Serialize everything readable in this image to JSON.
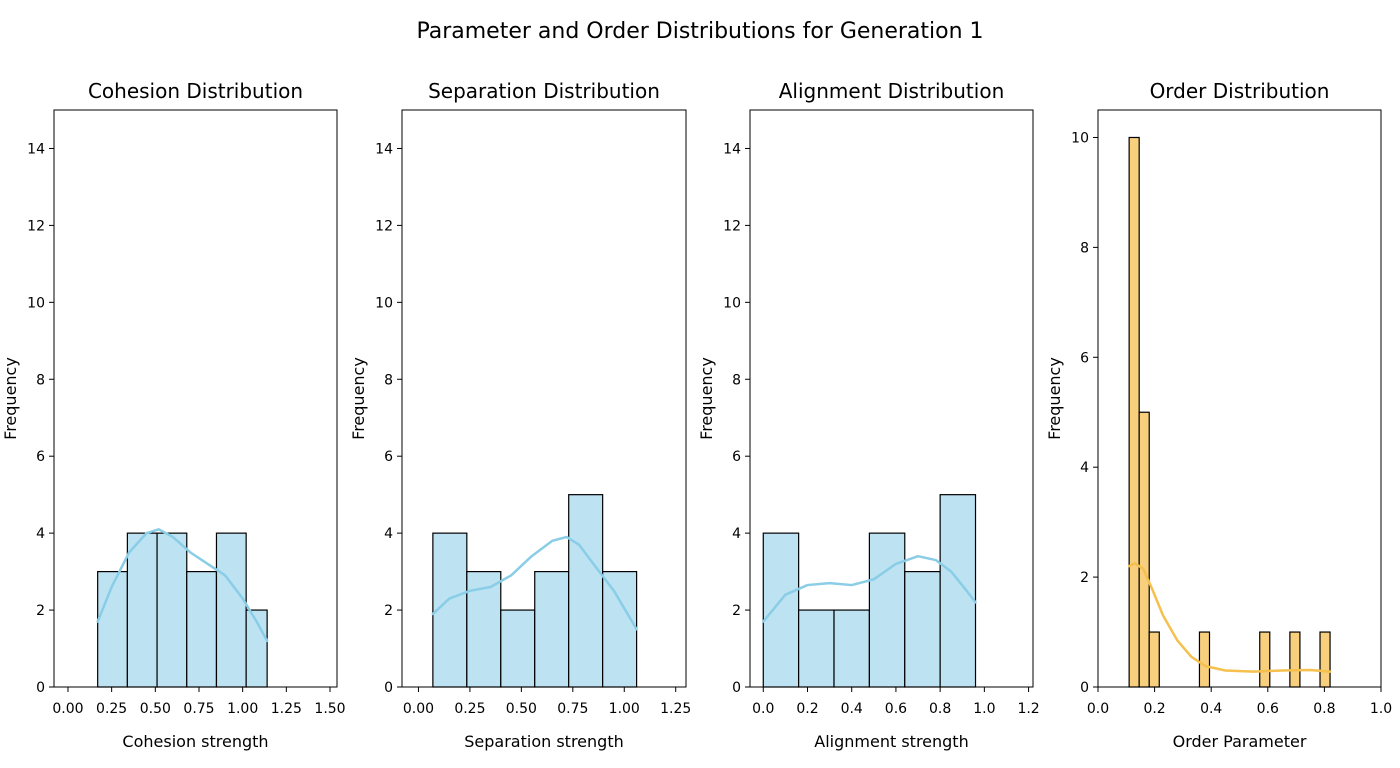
{
  "figure": {
    "title": "Parameter and Order Distributions for Generation 1"
  },
  "colors": {
    "blue_fill": "#bde3f2",
    "blue_kde": "#89cde6",
    "orange_fill": "#f7cf7d",
    "orange_kde": "#f5c04d",
    "edge": "#000000"
  },
  "chart_data": [
    {
      "type": "bar",
      "title": "Cohesion Distribution",
      "xlabel": "Cohesion strength",
      "ylabel": "Frequency",
      "xlim": [
        -0.08,
        1.54
      ],
      "ylim": [
        0,
        15
      ],
      "xticks": [
        0.0,
        0.25,
        0.5,
        0.75,
        1.0,
        1.25,
        1.5
      ],
      "xtick_labels": [
        "0.00",
        "0.25",
        "0.50",
        "0.75",
        "1.00",
        "1.25",
        "1.50"
      ],
      "yticks": [
        0,
        2,
        4,
        6,
        8,
        10,
        12,
        14
      ],
      "ytick_labels": [
        "0",
        "2",
        "4",
        "6",
        "8",
        "10",
        "12",
        "14"
      ],
      "bin_edges": [
        0.17,
        0.34,
        0.51,
        0.68,
        0.85,
        1.02,
        1.14
      ],
      "counts": [
        3,
        4,
        4,
        3,
        4,
        2
      ],
      "kde": {
        "x": [
          0.17,
          0.25,
          0.35,
          0.45,
          0.52,
          0.6,
          0.7,
          0.8,
          0.9,
          1.0,
          1.08,
          1.14
        ],
        "y": [
          1.7,
          2.6,
          3.5,
          4.0,
          4.1,
          3.9,
          3.5,
          3.2,
          2.9,
          2.3,
          1.7,
          1.2
        ]
      },
      "fill": "blue_fill",
      "line": "blue_kde"
    },
    {
      "type": "bar",
      "title": "Separation Distribution",
      "xlabel": "Separation strength",
      "ylabel": "Frequency",
      "xlim": [
        -0.08,
        1.3
      ],
      "ylim": [
        0,
        15
      ],
      "xticks": [
        0.0,
        0.25,
        0.5,
        0.75,
        1.0,
        1.25
      ],
      "xtick_labels": [
        "0.00",
        "0.25",
        "0.50",
        "0.75",
        "1.00",
        "1.25"
      ],
      "yticks": [
        0,
        2,
        4,
        6,
        8,
        10,
        12,
        14
      ],
      "ytick_labels": [
        "0",
        "2",
        "4",
        "6",
        "8",
        "10",
        "12",
        "14"
      ],
      "bin_edges": [
        0.07,
        0.235,
        0.4,
        0.565,
        0.73,
        0.895,
        1.06
      ],
      "counts": [
        4,
        3,
        2,
        3,
        5,
        3
      ],
      "kde": {
        "x": [
          0.07,
          0.15,
          0.25,
          0.35,
          0.45,
          0.55,
          0.65,
          0.72,
          0.78,
          0.85,
          0.95,
          1.06
        ],
        "y": [
          1.9,
          2.3,
          2.5,
          2.6,
          2.9,
          3.4,
          3.8,
          3.9,
          3.7,
          3.2,
          2.5,
          1.5
        ]
      },
      "fill": "blue_fill",
      "line": "blue_kde"
    },
    {
      "type": "bar",
      "title": "Alignment Distribution",
      "xlabel": "Alignment strength",
      "ylabel": "Frequency",
      "xlim": [
        -0.06,
        1.22
      ],
      "ylim": [
        0,
        15
      ],
      "xticks": [
        0.0,
        0.2,
        0.4,
        0.6,
        0.8,
        1.0,
        1.2
      ],
      "xtick_labels": [
        "0.0",
        "0.2",
        "0.4",
        "0.6",
        "0.8",
        "1.0",
        "1.2"
      ],
      "yticks": [
        0,
        2,
        4,
        6,
        8,
        10,
        12,
        14
      ],
      "ytick_labels": [
        "0",
        "2",
        "4",
        "6",
        "8",
        "10",
        "12",
        "14"
      ],
      "bin_edges": [
        0.0,
        0.16,
        0.32,
        0.48,
        0.64,
        0.8,
        0.96
      ],
      "counts": [
        4,
        2,
        2,
        4,
        3,
        5
      ],
      "kde": {
        "x": [
          0.0,
          0.1,
          0.2,
          0.3,
          0.4,
          0.5,
          0.6,
          0.7,
          0.78,
          0.85,
          0.92,
          0.96
        ],
        "y": [
          1.7,
          2.4,
          2.65,
          2.7,
          2.65,
          2.8,
          3.2,
          3.4,
          3.3,
          3.0,
          2.5,
          2.2
        ]
      },
      "fill": "blue_fill",
      "line": "blue_kde"
    },
    {
      "type": "bar",
      "title": "Order Distribution",
      "xlabel": "Order Parameter",
      "ylabel": "Frequency",
      "xlim": [
        0.0,
        1.0
      ],
      "ylim": [
        0,
        10.5
      ],
      "xticks": [
        0.0,
        0.2,
        0.4,
        0.6,
        0.8,
        1.0
      ],
      "xtick_labels": [
        "0.0",
        "0.2",
        "0.4",
        "0.6",
        "0.8",
        "1.0"
      ],
      "yticks": [
        0,
        2,
        4,
        6,
        8,
        10
      ],
      "ytick_labels": [
        "0",
        "2",
        "4",
        "6",
        "8",
        "10"
      ],
      "bin_edges": [
        0.11,
        0.1455,
        0.181,
        0.2165,
        0.252,
        0.2875,
        0.323,
        0.3585,
        0.394,
        0.4295,
        0.465,
        0.5005,
        0.536,
        0.5715,
        0.607,
        0.6425,
        0.678,
        0.7135,
        0.749,
        0.7845,
        0.82
      ],
      "counts": [
        10,
        5,
        1,
        0,
        0,
        0,
        0,
        1,
        0,
        0,
        0,
        0,
        0,
        1,
        0,
        0,
        1,
        0,
        0,
        1
      ],
      "kde": {
        "x": [
          0.11,
          0.13,
          0.16,
          0.19,
          0.23,
          0.28,
          0.33,
          0.38,
          0.45,
          0.55,
          0.65,
          0.75,
          0.82
        ],
        "y": [
          2.2,
          2.25,
          2.15,
          1.8,
          1.3,
          0.85,
          0.55,
          0.38,
          0.3,
          0.28,
          0.3,
          0.31,
          0.28
        ]
      },
      "fill": "orange_fill",
      "line": "orange_kde"
    }
  ]
}
